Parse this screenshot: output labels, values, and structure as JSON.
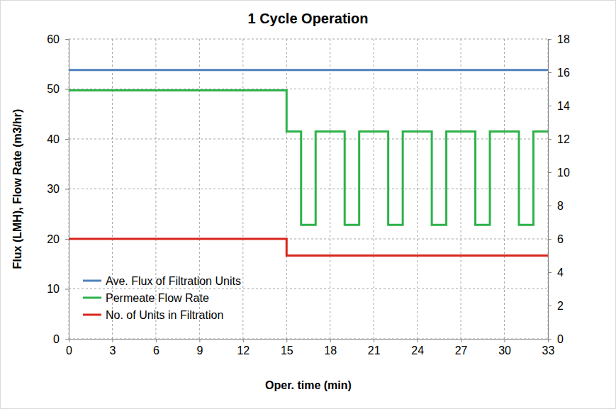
{
  "chart_data": {
    "type": "line",
    "title": "1 Cycle Operation",
    "x_label": "Oper. time (min)",
    "y_label": "Flux (LMH), Flow Rate (m3/hr)",
    "xlim": [
      0,
      33
    ],
    "xticks": [
      0,
      3,
      6,
      9,
      12,
      15,
      18,
      21,
      24,
      27,
      30,
      33
    ],
    "ylim": [
      0,
      60
    ],
    "yticks": [
      0,
      10,
      20,
      30,
      40,
      50,
      60
    ],
    "y2lim": [
      0,
      18
    ],
    "y2ticks": [
      0,
      2,
      4,
      6,
      8,
      10,
      12,
      14,
      16,
      18
    ],
    "grid": true,
    "legend": "lower left",
    "series": [
      {
        "name": "Ave. Flux of Filtration Units",
        "color": "#4f81bd",
        "line_style": "solid",
        "x": [
          0,
          33
        ],
        "values": [
          53.8,
          53.8
        ]
      },
      {
        "name": "Permeate Flow Rate",
        "color": "#2db34a",
        "line_style": "solid",
        "x": [
          0,
          15,
          15,
          16,
          16,
          17,
          17,
          19,
          19,
          20,
          20,
          22,
          22,
          23,
          23,
          25,
          25,
          26,
          26,
          28,
          28,
          29,
          29,
          31,
          31,
          32,
          32,
          33
        ],
        "values": [
          49.7,
          49.7,
          41.5,
          41.5,
          22.8,
          22.8,
          41.5,
          41.5,
          22.8,
          22.8,
          41.5,
          41.5,
          22.8,
          22.8,
          41.5,
          41.5,
          22.8,
          22.8,
          41.5,
          41.5,
          22.8,
          22.8,
          41.5,
          41.5,
          22.8,
          22.8,
          41.5,
          41.5
        ]
      },
      {
        "name": "No. of Units in Filtration",
        "color": "#d9261c",
        "line_style": "solid",
        "axis": "y2",
        "x": [
          0,
          15,
          15,
          33
        ],
        "values": [
          6,
          6,
          5,
          5
        ]
      }
    ]
  }
}
